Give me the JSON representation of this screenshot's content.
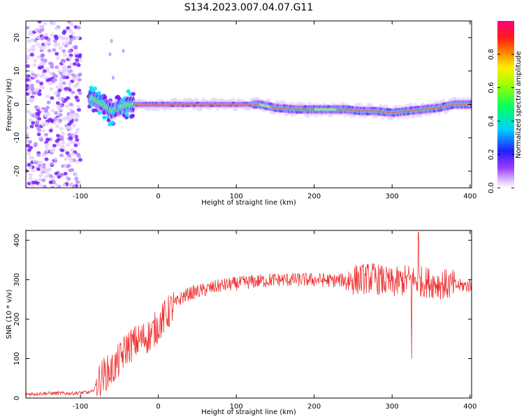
{
  "figure": {
    "title": "S134.2023.007.04.07.G11"
  },
  "chart_data": [
    {
      "type": "heatmap",
      "title": "",
      "xlabel": "Height of straight line (km)",
      "ylabel": "Frequency (Hz)",
      "xlim": [
        -170,
        402
      ],
      "ylim": [
        -25,
        25
      ],
      "x_ticks": [
        -100,
        0,
        100,
        200,
        300,
        400
      ],
      "y_ticks": [
        -20,
        -10,
        0,
        10,
        20
      ],
      "colorbar": {
        "label": "Normalized spectral amplitude",
        "ticks": [
          0.0,
          0.2,
          0.4,
          0.6,
          0.8
        ],
        "range": [
          0,
          1
        ],
        "colormap": "rainbow (white-violet-blue-cyan-green-yellow-red-magenta)"
      },
      "ridge": {
        "x": [
          -85,
          -70,
          -60,
          -50,
          -40,
          -30,
          0,
          50,
          100,
          130,
          150,
          175,
          200,
          240,
          260,
          280,
          300,
          320,
          340,
          360,
          380,
          400
        ],
        "y": [
          2,
          0,
          -2,
          -1,
          0,
          0,
          0,
          0,
          0,
          0,
          -1,
          -1.5,
          -1.5,
          -1.5,
          -2,
          -2,
          -2.5,
          -2,
          -1.5,
          -1,
          0,
          0
        ]
      },
      "grid": false
    },
    {
      "type": "line",
      "title": "",
      "xlabel": "Height of straight line (km)",
      "ylabel": "SNR (10 * v/v)",
      "xlim": [
        -170,
        402
      ],
      "ylim": [
        0,
        425
      ],
      "x_ticks": [
        -100,
        0,
        100,
        200,
        300,
        400
      ],
      "y_ticks": [
        0,
        100,
        200,
        300,
        400
      ],
      "color": "#ee3333",
      "series": [
        {
          "x": [
            -170,
            -140,
            -110,
            -85,
            -78,
            -70,
            -60,
            -50,
            -40,
            -30,
            -20,
            -10,
            0,
            10,
            20,
            30,
            40,
            50,
            60,
            80,
            100,
            120,
            150,
            175,
            200,
            225,
            250,
            275,
            300,
            320,
            340,
            360,
            380,
            400
          ],
          "y": [
            10,
            12,
            12,
            15,
            40,
            60,
            70,
            95,
            130,
            140,
            150,
            160,
            185,
            210,
            235,
            255,
            265,
            270,
            275,
            285,
            290,
            295,
            300,
            300,
            300,
            298,
            300,
            305,
            290,
            300,
            295,
            290,
            285,
            285
          ]
        }
      ],
      "notable_values": {
        "max": 420,
        "min_dip": 100,
        "min_dip_x": 325
      },
      "grid": false
    }
  ]
}
